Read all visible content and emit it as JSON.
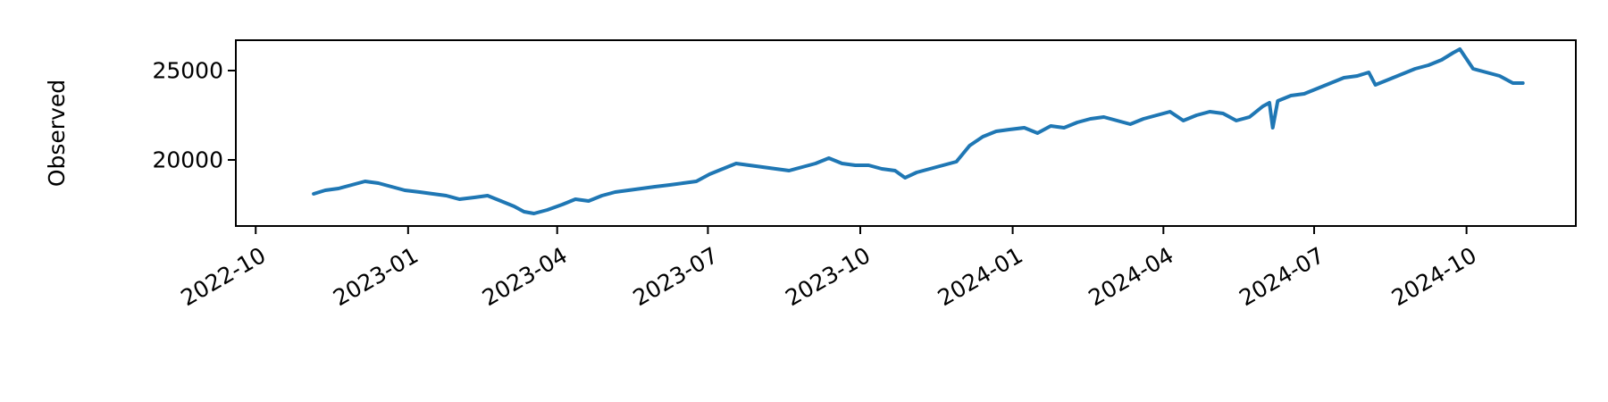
{
  "chart_data": {
    "type": "line",
    "title": "",
    "xlabel": "",
    "ylabel": "Observed",
    "xlim": [
      "2022-09-19",
      "2024-12-06"
    ],
    "ylim": [
      16300,
      26700
    ],
    "grid": false,
    "legend": "none",
    "colors": {
      "line": "#1f77b4",
      "axes": "#000000",
      "background": "#ffffff"
    },
    "yticks": [
      {
        "value": 20000,
        "label": "20000"
      },
      {
        "value": 25000,
        "label": "25000"
      }
    ],
    "xticks": [
      {
        "value": "2022-10-01",
        "label": "2022-10"
      },
      {
        "value": "2023-01-01",
        "label": "2023-01"
      },
      {
        "value": "2023-04-01",
        "label": "2023-04"
      },
      {
        "value": "2023-07-01",
        "label": "2023-07"
      },
      {
        "value": "2023-10-01",
        "label": "2023-10"
      },
      {
        "value": "2024-01-01",
        "label": "2024-01"
      },
      {
        "value": "2024-04-01",
        "label": "2024-04"
      },
      {
        "value": "2024-07-01",
        "label": "2024-07"
      },
      {
        "value": "2024-10-01",
        "label": "2024-10"
      }
    ],
    "series": [
      {
        "x": [
          "2022-11-05",
          "2022-11-12",
          "2022-11-20",
          "2022-11-28",
          "2022-12-06",
          "2022-12-14",
          "2022-12-22",
          "2022-12-30",
          "2023-01-08",
          "2023-01-16",
          "2023-01-24",
          "2023-02-01",
          "2023-02-10",
          "2023-02-18",
          "2023-02-26",
          "2023-03-06",
          "2023-03-12",
          "2023-03-18",
          "2023-03-26",
          "2023-04-04",
          "2023-04-12",
          "2023-04-20",
          "2023-04-28",
          "2023-05-06",
          "2023-05-14",
          "2023-05-22",
          "2023-05-30",
          "2023-06-08",
          "2023-06-16",
          "2023-06-24",
          "2023-07-02",
          "2023-07-10",
          "2023-07-18",
          "2023-07-26",
          "2023-08-03",
          "2023-08-11",
          "2023-08-19",
          "2023-08-27",
          "2023-09-04",
          "2023-09-12",
          "2023-09-20",
          "2023-09-28",
          "2023-10-06",
          "2023-10-14",
          "2023-10-22",
          "2023-10-28",
          "2023-11-04",
          "2023-11-12",
          "2023-11-20",
          "2023-11-28",
          "2023-12-06",
          "2023-12-14",
          "2023-12-22",
          "2023-12-30",
          "2024-01-08",
          "2024-01-16",
          "2024-01-24",
          "2024-02-01",
          "2024-02-09",
          "2024-02-17",
          "2024-02-25",
          "2024-03-04",
          "2024-03-12",
          "2024-03-20",
          "2024-03-28",
          "2024-04-05",
          "2024-04-13",
          "2024-04-21",
          "2024-04-29",
          "2024-05-07",
          "2024-05-15",
          "2024-05-23",
          "2024-05-31",
          "2024-06-04",
          "2024-06-06",
          "2024-06-09",
          "2024-06-17",
          "2024-06-25",
          "2024-07-03",
          "2024-07-11",
          "2024-07-19",
          "2024-07-27",
          "2024-08-03",
          "2024-08-07",
          "2024-08-15",
          "2024-08-23",
          "2024-08-31",
          "2024-09-08",
          "2024-09-16",
          "2024-09-23",
          "2024-09-27",
          "2024-10-05",
          "2024-10-13",
          "2024-10-21",
          "2024-10-29",
          "2024-11-04"
        ],
        "y": [
          18100,
          18300,
          18400,
          18600,
          18800,
          18700,
          18500,
          18300,
          18200,
          18100,
          18000,
          17800,
          17900,
          18000,
          17700,
          17400,
          17100,
          17000,
          17200,
          17500,
          17800,
          17700,
          18000,
          18200,
          18300,
          18400,
          18500,
          18600,
          18700,
          18800,
          19200,
          19500,
          19800,
          19700,
          19600,
          19500,
          19400,
          19600,
          19800,
          20100,
          19800,
          19700,
          19700,
          19500,
          19400,
          19000,
          19300,
          19500,
          19700,
          19900,
          20800,
          21300,
          21600,
          21700,
          21800,
          21500,
          21900,
          21800,
          22100,
          22300,
          22400,
          22200,
          22000,
          22300,
          22500,
          22700,
          22200,
          22500,
          22700,
          22600,
          22200,
          22400,
          23000,
          23200,
          21800,
          23300,
          23600,
          23700,
          24000,
          24300,
          24600,
          24700,
          24900,
          24200,
          24500,
          24800,
          25100,
          25300,
          25600,
          26000,
          26200,
          25100,
          24900,
          24700,
          24300,
          24300
        ]
      }
    ]
  }
}
